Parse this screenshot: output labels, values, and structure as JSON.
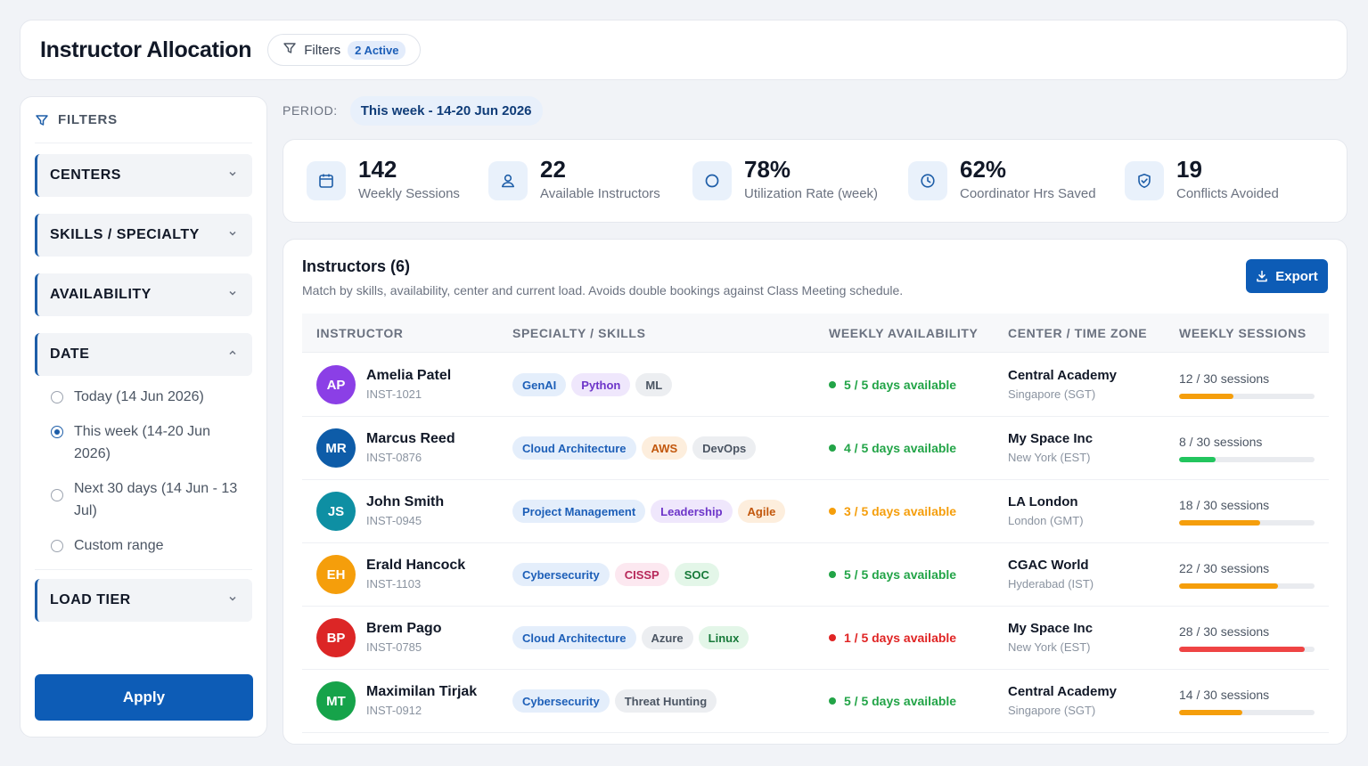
{
  "header": {
    "title": "Instructor Allocation",
    "filters_label": "Filters",
    "filters_badge": "2 Active"
  },
  "sidebar": {
    "title": "FILTERS",
    "sections": {
      "centers": "CENTERS",
      "skills": "SKILLS / SPECIALTY",
      "availability": "AVAILABILITY",
      "date": "DATE",
      "load_tier": "LOAD TIER"
    },
    "date_options": [
      {
        "label": "Today (14 Jun 2026)",
        "selected": false
      },
      {
        "label": "This week (14-20 Jun 2026)",
        "selected": true
      },
      {
        "label": "Next 30 days (14 Jun - 13 Jul)",
        "selected": false
      },
      {
        "label": "Custom range",
        "selected": false
      }
    ],
    "apply_label": "Apply"
  },
  "period": {
    "label": "PERIOD:",
    "value": "This week - 14-20 Jun 2026"
  },
  "stats": [
    {
      "value": "142",
      "label": "Weekly Sessions",
      "icon": "calendar-icon"
    },
    {
      "value": "22",
      "label": "Available Instructors",
      "icon": "user-icon"
    },
    {
      "value": "78%",
      "label": "Utilization Rate (week)",
      "icon": "circle-icon"
    },
    {
      "value": "62%",
      "label": "Coordinator Hrs Saved",
      "icon": "clock-icon"
    },
    {
      "value": "19",
      "label": "Conflicts Avoided",
      "icon": "shield-check-icon"
    }
  ],
  "panel": {
    "title": "Instructors (6)",
    "subtitle": "Match by skills, availability, center and current load. Avoids double bookings against Class Meeting schedule.",
    "export_label": "Export"
  },
  "table": {
    "columns": [
      "INSTRUCTOR",
      "SPECIALTY / SKILLS",
      "WEEKLY AVAILABILITY",
      "CENTER / TIME ZONE",
      "WEEKLY SESSIONS"
    ],
    "rows": [
      {
        "initials": "AP",
        "name": "Amelia Patel",
        "id": "INST-1021",
        "avatar_color": "#8b3fe6",
        "tags": [
          {
            "text": "GenAI",
            "color": "blue"
          },
          {
            "text": "Python",
            "color": "purple"
          },
          {
            "text": "ML",
            "color": "gray"
          }
        ],
        "availability": "5 / 5 days available",
        "avail_status": "green",
        "center": "Central Academy",
        "timezone": "Singapore (SGT)",
        "sessions": "12 / 30 sessions",
        "load": 0.4,
        "load_color": "#f59e0b"
      },
      {
        "initials": "MR",
        "name": "Marcus Reed",
        "id": "INST-0876",
        "avatar_color": "#0e5ca8",
        "tags": [
          {
            "text": "Cloud Architecture",
            "color": "blue"
          },
          {
            "text": "AWS",
            "color": "orange"
          },
          {
            "text": "DevOps",
            "color": "gray"
          }
        ],
        "availability": "4 / 5 days available",
        "avail_status": "green",
        "center": "My Space Inc",
        "timezone": "New York (EST)",
        "sessions": "8 / 30 sessions",
        "load": 0.27,
        "load_color": "#22c55e"
      },
      {
        "initials": "JS",
        "name": "John Smith",
        "id": "INST-0945",
        "avatar_color": "#0e8fa3",
        "tags": [
          {
            "text": "Project Management",
            "color": "blue"
          },
          {
            "text": "Leadership",
            "color": "purple"
          },
          {
            "text": "Agile",
            "color": "orange"
          }
        ],
        "availability": "3 / 5 days available",
        "avail_status": "orange",
        "center": "LA London",
        "timezone": "London (GMT)",
        "sessions": "18 / 30 sessions",
        "load": 0.6,
        "load_color": "#f59e0b"
      },
      {
        "initials": "EH",
        "name": "Erald Hancock",
        "id": "INST-1103",
        "avatar_color": "#f59e0b",
        "tags": [
          {
            "text": "Cybersecurity",
            "color": "blue"
          },
          {
            "text": "CISSP",
            "color": "pink"
          },
          {
            "text": "SOC",
            "color": "green"
          }
        ],
        "availability": "5 / 5 days available",
        "avail_status": "green",
        "center": "CGAC World",
        "timezone": "Hyderabad (IST)",
        "sessions": "22 / 30 sessions",
        "load": 0.73,
        "load_color": "#f59e0b"
      },
      {
        "initials": "BP",
        "name": "Brem Pago",
        "id": "INST-0785",
        "avatar_color": "#dc2626",
        "tags": [
          {
            "text": "Cloud Architecture",
            "color": "blue"
          },
          {
            "text": "Azure",
            "color": "gray"
          },
          {
            "text": "Linux",
            "color": "green"
          }
        ],
        "availability": "1 / 5 days available",
        "avail_status": "red",
        "center": "My Space Inc",
        "timezone": "New York (EST)",
        "sessions": "28 / 30 sessions",
        "load": 0.93,
        "load_color": "#ef4444"
      },
      {
        "initials": "MT",
        "name": "Maximilan Tirjak",
        "id": "INST-0912",
        "avatar_color": "#16a34a",
        "tags": [
          {
            "text": "Cybersecurity",
            "color": "blue"
          },
          {
            "text": "Threat Hunting",
            "color": "gray"
          }
        ],
        "availability": "5 / 5 days available",
        "avail_status": "green",
        "center": "Central Academy",
        "timezone": "Singapore (SGT)",
        "sessions": "14 / 30 sessions",
        "load": 0.47,
        "load_color": "#f59e0b"
      }
    ]
  },
  "colors": {
    "primary": "#0d5cb6",
    "status_green": "#22a447",
    "status_orange": "#f59e0b",
    "status_red": "#e02424"
  }
}
